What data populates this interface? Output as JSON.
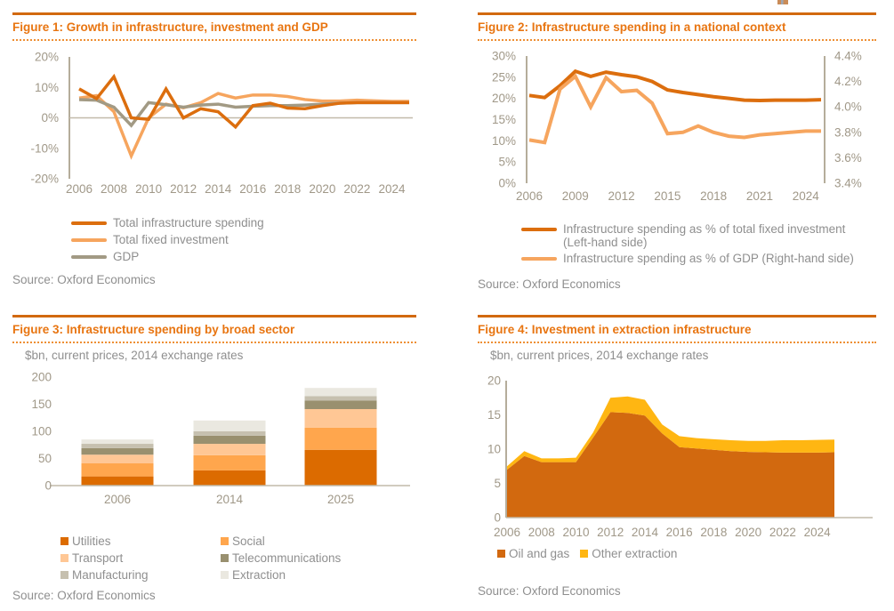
{
  "chart_data": [
    {
      "id": "figure1",
      "type": "line",
      "title": "Figure 1: Growth in infrastructure, investment and GDP",
      "source": "Source: Oxford Economics",
      "x": [
        2006,
        2007,
        2008,
        2009,
        2010,
        2011,
        2012,
        2013,
        2014,
        2015,
        2016,
        2017,
        2018,
        2019,
        2020,
        2021,
        2022,
        2023,
        2024,
        2025
      ],
      "xticks": [
        2006,
        2008,
        2010,
        2012,
        2014,
        2016,
        2018,
        2020,
        2022,
        2024
      ],
      "ylim": [
        -20,
        20
      ],
      "yticks": {
        "labels": [
          "20%",
          "10%",
          "0%",
          "-10%",
          "-20%"
        ],
        "values": [
          20,
          10,
          0,
          -10,
          -20
        ]
      },
      "grid": false,
      "legend_position": "below-left",
      "series": [
        {
          "name": "Total infrastructure spending",
          "color": "#DC6E0E",
          "values": [
            9.5,
            6.3,
            13.5,
            0,
            -0.5,
            9.5,
            0,
            3,
            2,
            -3,
            4,
            4.8,
            3.2,
            3,
            4,
            4.8,
            5,
            5,
            5,
            5
          ]
        },
        {
          "name": "Total fixed investment",
          "color": "#F6A55E",
          "values": [
            6.5,
            7.3,
            2,
            -12.5,
            0,
            4.5,
            3.3,
            5,
            8,
            6.5,
            7.5,
            7.5,
            7,
            6,
            5.5,
            5.5,
            5.8,
            5.6,
            5.4,
            5.4
          ]
        },
        {
          "name": "GDP",
          "color": "#A29A84",
          "values": [
            6,
            5.8,
            3.5,
            -2.5,
            5,
            4.3,
            3.5,
            4.2,
            4.5,
            3.5,
            3.8,
            4,
            4,
            4.2,
            4.5,
            4.8,
            5,
            5,
            5,
            5
          ]
        }
      ],
      "legend": [
        {
          "lines": [
            "Total infrastructure spending"
          ],
          "color": "#DC6E0E"
        },
        {
          "lines": [
            "Total fixed investment"
          ],
          "color": "#F6A55E"
        },
        {
          "lines": [
            "GDP"
          ],
          "color": "#A29A84"
        }
      ]
    },
    {
      "id": "figure2",
      "type": "line",
      "title": "Figure 2: Infrastructure spending in a national context",
      "source": "Source: Oxford Economics",
      "x": [
        2006,
        2007,
        2008,
        2009,
        2010,
        2011,
        2012,
        2013,
        2014,
        2015,
        2016,
        2017,
        2018,
        2019,
        2020,
        2021,
        2022,
        2023,
        2024,
        2025
      ],
      "xticks": [
        2006,
        2009,
        2012,
        2015,
        2018,
        2021,
        2024
      ],
      "ylim_left": [
        0,
        30
      ],
      "ylim_right": [
        3.4,
        4.4
      ],
      "yticks_left": {
        "labels": [
          "30%",
          "25%",
          "20%",
          "15%",
          "10%",
          "5%",
          "0%"
        ],
        "values": [
          30,
          25,
          20,
          15,
          10,
          5,
          0
        ]
      },
      "yticks_right": {
        "labels": [
          "4.4%",
          "4.2%",
          "4.0%",
          "3.8%",
          "3.6%",
          "3.4%"
        ],
        "values": [
          4.4,
          4.2,
          4.0,
          3.8,
          3.6,
          3.4
        ]
      },
      "grid": false,
      "legend_position": "below-left",
      "series": [
        {
          "name": "Infrastructure spending as % of total fixed investment (Left-hand side)",
          "axis": "left",
          "color": "#DC6E0E",
          "values": [
            20.7,
            20.2,
            23,
            26.4,
            25.2,
            26.2,
            25.6,
            25.1,
            24,
            22,
            21.4,
            20.9,
            20.4,
            20,
            19.6,
            19.5,
            19.6,
            19.6,
            19.6,
            19.7
          ]
        },
        {
          "name": "Infrastructure spending as % of GDP (Right-hand side)",
          "axis": "right",
          "color": "#F6A55E",
          "values": [
            3.74,
            3.72,
            4.14,
            4.24,
            4.0,
            4.23,
            4.12,
            4.13,
            4.03,
            3.79,
            3.8,
            3.85,
            3.8,
            3.77,
            3.76,
            3.78,
            3.79,
            3.8,
            3.81,
            3.81
          ]
        }
      ],
      "legend": [
        {
          "lines": [
            "Infrastructure spending as % of total fixed investment",
            "(Left-hand side)"
          ],
          "color": "#DC6E0E"
        },
        {
          "lines": [
            "Infrastructure spending as % of GDP (Right-hand side)"
          ],
          "color": "#F6A55E"
        }
      ]
    },
    {
      "id": "figure3",
      "type": "bar-stacked",
      "title": "Figure 3: Infrastructure spending by broad sector",
      "subtitle": "$bn, current prices, 2014 exchange rates",
      "source": "Source: Oxford Economics",
      "categories": [
        "2006",
        "2014",
        "2025"
      ],
      "ylim": [
        0,
        200
      ],
      "yticks": {
        "labels": [
          "200",
          "150",
          "100",
          "50",
          "0"
        ],
        "values": [
          200,
          150,
          100,
          50,
          0
        ]
      },
      "grid": false,
      "legend_position": "below-two-columns",
      "series": [
        {
          "name": "Utilities",
          "color": "#DC6B00",
          "values": [
            17,
            28,
            66
          ]
        },
        {
          "name": "Social",
          "color": "#FFA64D",
          "values": [
            24,
            28,
            41
          ]
        },
        {
          "name": "Transport",
          "color": "#FFC795",
          "values": [
            16,
            21,
            34
          ]
        },
        {
          "name": "Telecommunications",
          "color": "#99906F",
          "values": [
            12,
            15,
            16
          ]
        },
        {
          "name": "Manufacturing",
          "color": "#C6C0AF",
          "values": [
            8,
            8,
            8
          ]
        },
        {
          "name": "Extraction",
          "color": "#EAE8E0",
          "values": [
            8,
            20,
            15
          ]
        }
      ],
      "legend": [
        {
          "lines": [
            "Utilities"
          ],
          "color": "#DC6B00"
        },
        {
          "lines": [
            "Social"
          ],
          "color": "#FFA64D"
        },
        {
          "lines": [
            "Transport"
          ],
          "color": "#FFC795"
        },
        {
          "lines": [
            "Telecommunications"
          ],
          "color": "#99906F"
        },
        {
          "lines": [
            "Manufacturing"
          ],
          "color": "#C6C0AF"
        },
        {
          "lines": [
            "Extraction"
          ],
          "color": "#EAE8E0"
        }
      ]
    },
    {
      "id": "figure4",
      "type": "area-stacked",
      "title": "Figure 4: Investment in extraction infrastructure",
      "subtitle": "$bn, current prices, 2014 exchange rates",
      "source": "Source: Oxford Economics",
      "x": [
        2006,
        2007,
        2008,
        2009,
        2010,
        2011,
        2012,
        2013,
        2014,
        2015,
        2016,
        2017,
        2018,
        2019,
        2020,
        2021,
        2022,
        2023,
        2024,
        2025
      ],
      "xticks": [
        2006,
        2008,
        2010,
        2012,
        2014,
        2016,
        2018,
        2020,
        2022,
        2024
      ],
      "ylim": [
        0,
        20
      ],
      "yticks": {
        "labels": [
          "20",
          "15",
          "10",
          "5",
          "0"
        ],
        "values": [
          20,
          15,
          10,
          5,
          0
        ]
      },
      "grid": false,
      "legend_position": "below-row",
      "series": [
        {
          "name": "Oil and gas",
          "color": "#D2690F",
          "values": [
            7.0,
            9.0,
            8.1,
            8.1,
            8.1,
            11.7,
            15.4,
            15.3,
            14.9,
            12.3,
            10.3,
            10.1,
            9.9,
            9.7,
            9.6,
            9.55,
            9.5,
            9.5,
            9.5,
            9.55
          ]
        },
        {
          "name": "Other extraction",
          "color": "#FFB612",
          "values": [
            0.5,
            0.7,
            0.55,
            0.55,
            0.65,
            0.75,
            2.1,
            2.4,
            2.3,
            1.3,
            1.6,
            1.5,
            1.55,
            1.6,
            1.6,
            1.65,
            1.8,
            1.8,
            1.85,
            1.85
          ]
        }
      ],
      "legend": [
        {
          "lines": [
            "Oil and gas"
          ],
          "color": "#D2690F"
        },
        {
          "lines": [
            "Other extraction"
          ],
          "color": "#FFB612"
        }
      ]
    }
  ],
  "accent_colors": {
    "title_orange": "#E87511",
    "rule_orange": "#D2690F",
    "dark_orange_series": "#DC6E0E",
    "light_orange_series": "#F6A55E",
    "gdp_gray": "#A29A84",
    "amber": "#FFB612",
    "axis_tan": "#B5AD9B",
    "text_gray": "#8F8F8F"
  }
}
